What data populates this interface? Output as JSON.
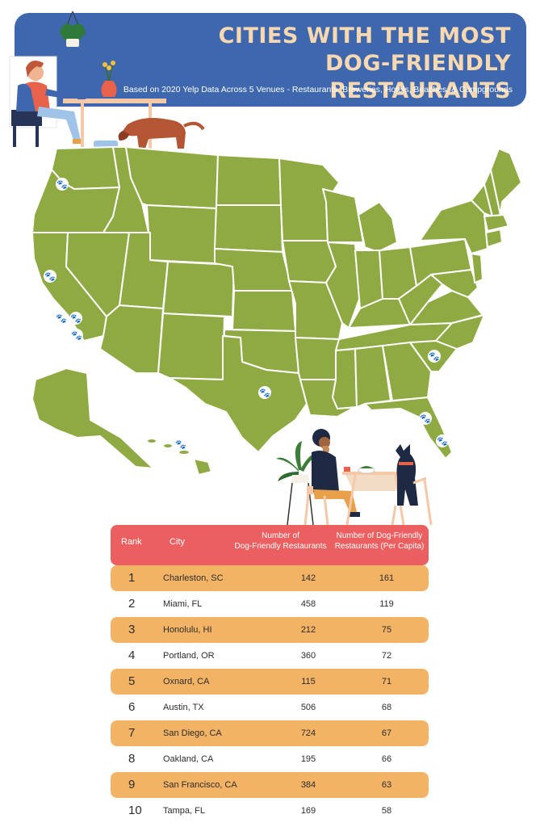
{
  "header": {
    "title_line1": "Cities with the most",
    "title_line2": "Dog-Friendly Restaurants",
    "subtitle": "Based on 2020 Yelp Data Across 5 Venues - Restaurants, Breweries, Hotels, Beaches, & Campgrounds"
  },
  "colors": {
    "banner": "#3e67ae",
    "title": "#f8d8b0",
    "map_fill": "#8faa43",
    "table_header": "#ec5f61",
    "row_highlight": "#f3b365",
    "paw": "#3e67ae"
  },
  "table": {
    "headers": {
      "rank": "Rank",
      "city": "City",
      "num_line1": "Number of",
      "num_line2": "Dog-Friendly Restaurants",
      "pc_line1": "Number of Dog-Friendly",
      "pc_line2": "Restaurants (Per Capita)"
    },
    "rows": [
      {
        "rank": "1",
        "city": "Charleston, SC",
        "num": "142",
        "pc": "161"
      },
      {
        "rank": "2",
        "city": "Miami, FL",
        "num": "458",
        "pc": "119"
      },
      {
        "rank": "3",
        "city": "Honolulu, HI",
        "num": "212",
        "pc": "75"
      },
      {
        "rank": "4",
        "city": "Portland, OR",
        "num": "360",
        "pc": "72"
      },
      {
        "rank": "5",
        "city": "Oxnard, CA",
        "num": "115",
        "pc": "71"
      },
      {
        "rank": "6",
        "city": "Austin, TX",
        "num": "506",
        "pc": "68"
      },
      {
        "rank": "7",
        "city": "San Diego, CA",
        "num": "724",
        "pc": "67"
      },
      {
        "rank": "8",
        "city": "Oakland, CA",
        "num": "195",
        "pc": "66"
      },
      {
        "rank": "9",
        "city": "San Francisco, CA",
        "num": "384",
        "pc": "63"
      },
      {
        "rank": "10",
        "city": "Tampa, FL",
        "num": "169",
        "pc": "58"
      }
    ]
  },
  "map": {
    "icon": "paw-print-icon",
    "markers": [
      "Portland, OR",
      "Oakland, CA",
      "San Francisco, CA",
      "Oxnard, CA",
      "San Diego, CA",
      "Austin, TX",
      "Charleston, SC",
      "Tampa, FL",
      "Miami, FL",
      "Honolulu, HI"
    ]
  }
}
